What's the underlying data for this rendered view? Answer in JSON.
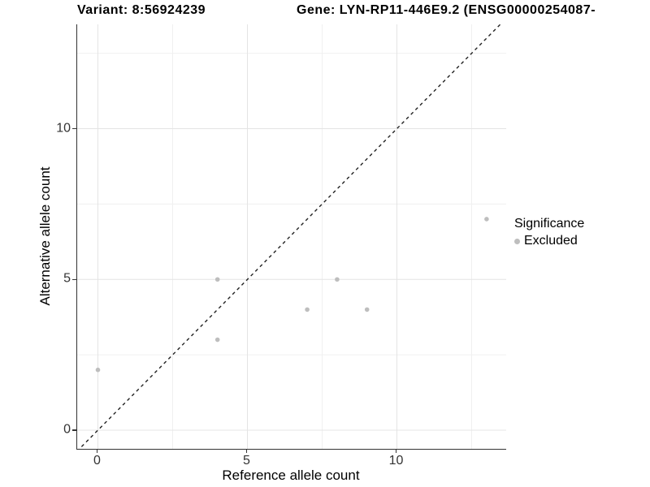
{
  "title": {
    "variant": "Variant: 8:56924239",
    "gene": "Gene: LYN-RP11-446E9.2 (ENSG00000254087-"
  },
  "chart_data": {
    "type": "scatter",
    "title": "Variant: 8:56924239    Gene: LYN-RP11-446E9.2 (ENSG00000254087-",
    "xlabel": "Reference allele count",
    "ylabel": "Alternative allele count",
    "x_ticks": [
      0,
      5,
      10
    ],
    "y_ticks": [
      0,
      5,
      10
    ],
    "x_minor_gridlines": [
      2.5,
      7.5,
      12.5
    ],
    "y_minor_gridlines": [
      2.5,
      7.5,
      12.5
    ],
    "xlim": [
      -0.7,
      13.65
    ],
    "ylim": [
      -0.62,
      13.46
    ],
    "grid": true,
    "series": [
      {
        "name": "Excluded",
        "color": "#bebebe",
        "points": [
          [
            0,
            2
          ],
          [
            4,
            3
          ],
          [
            4,
            5
          ],
          [
            7,
            4
          ],
          [
            8,
            5
          ],
          [
            9,
            4
          ],
          [
            13,
            7
          ]
        ]
      }
    ],
    "reference_line": {
      "style": "dashed",
      "equation": "y = x",
      "color": "#222222"
    },
    "legend": {
      "title": "Significance",
      "position": "right",
      "items": [
        {
          "label": "Excluded",
          "color": "#bebebe",
          "marker": "dot"
        }
      ]
    },
    "colors": {
      "major_grid": "#e4e4e4",
      "minor_grid": "#f0f0f0",
      "axis_line": "#333333",
      "tick_text": "#333333"
    }
  }
}
